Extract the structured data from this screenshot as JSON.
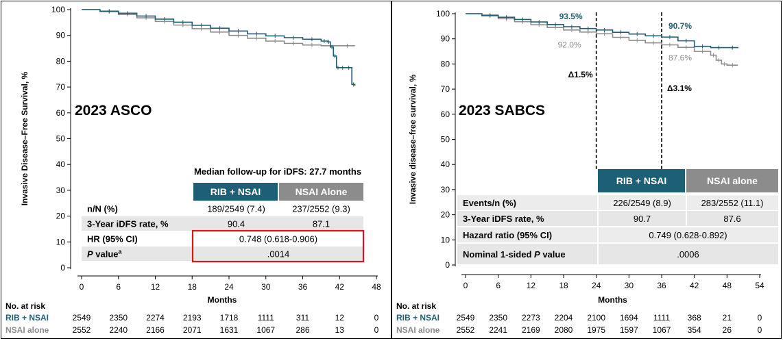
{
  "colors": {
    "teal": "#1d5f74",
    "gray": "#8c8c8c",
    "table_shade": "#e6e6e6",
    "highlight": "#d9141c"
  },
  "charts": [
    {
      "panel_label": "2023 ASCO",
      "ylabel": "Invasive Disease–Free Survival, %",
      "xlabel": "Months",
      "follow_up_note": "Median follow-up for iDFS: 27.7 months",
      "table": {
        "headers": [
          "RIB + NSAI",
          "NSAI Alone"
        ],
        "rows": [
          {
            "label": "n/N (%)",
            "label_italic": "",
            "label_sup": "",
            "values": [
              "189/2549 (7.4)",
              "237/2552 (9.3)"
            ]
          },
          {
            "label": "3-Year iDFS rate, %",
            "label_italic": "",
            "label_sup": "",
            "values": [
              "90.4",
              "87.1"
            ]
          },
          {
            "label": "HR (95% CI)",
            "label_italic": "",
            "label_sup": "",
            "values": [
              "0.748 (0.618-0.906)"
            ]
          },
          {
            "label": "",
            "label_italic": "P",
            "label_sup": "a",
            "label_tail": " value",
            "values": [
              ".0014"
            ]
          }
        ]
      },
      "risk_table": {
        "heading": "No. at risk",
        "rows": [
          {
            "label": "RIB + NSAI",
            "values": [
              "2549",
              "2350",
              "2274",
              "2193",
              "1718",
              "1111",
              "311",
              "12",
              "0"
            ]
          },
          {
            "label": "NSAI alone",
            "values": [
              "2552",
              "2240",
              "2166",
              "2071",
              "1631",
              "1067",
              "286",
              "13",
              "0"
            ]
          }
        ]
      },
      "annotations": [],
      "chart_data": {
        "type": "line",
        "title": "2023 ASCO",
        "xlabel": "Months",
        "ylabel": "Invasive Disease–Free Survival, %",
        "xlim": [
          0,
          48
        ],
        "ylim": [
          0,
          100
        ],
        "xticks": [
          0,
          6,
          12,
          18,
          24,
          30,
          36,
          42,
          48
        ],
        "yticks": [
          0,
          10,
          20,
          30,
          40,
          50,
          60,
          70,
          80,
          90,
          100
        ],
        "series": [
          {
            "name": "RIB + NSAI",
            "x": [
              0,
              3,
              6,
              9,
              12,
              15,
              18,
              21,
              24,
              27,
              30,
              33,
              36,
              39,
              40,
              40.5,
              41,
              41.5,
              42,
              43,
              44,
              44.5
            ],
            "y": [
              100,
              99.4,
              98.6,
              97.5,
              96.3,
              95.1,
              93.9,
              92.8,
              91.7,
              90.6,
              89.8,
              89.1,
              88.5,
              87.8,
              87.5,
              85.5,
              82.0,
              77.5,
              77.5,
              77.5,
              71.0,
              70.5
            ]
          },
          {
            "name": "NSAI alone",
            "x": [
              0,
              3,
              6,
              9,
              12,
              15,
              18,
              21,
              24,
              27,
              30,
              33,
              36,
              39,
              42,
              44.5
            ],
            "y": [
              100,
              99.2,
              98.1,
              96.8,
              95.4,
              94.0,
              92.6,
              91.3,
              90.0,
              88.9,
              87.8,
              86.9,
              86.3,
              86.0,
              86.0,
              86.0
            ]
          }
        ]
      }
    },
    {
      "panel_label": "2023 SABCS",
      "ylabel": "Invasive disease–free survival, %",
      "xlabel": "Months",
      "follow_up_note": "",
      "table": {
        "headers": [
          "RIB + NSAI",
          "NSAI alone"
        ],
        "rows": [
          {
            "label": "Events/n (%)",
            "label_italic": "",
            "label_sup": "",
            "values": [
              "226/2549 (8.9)",
              "283/2552 (11.1)"
            ]
          },
          {
            "label": "3-Year iDFS rate, %",
            "label_italic": "",
            "label_sup": "",
            "values": [
              "90.7",
              "87.6"
            ]
          },
          {
            "label": "Hazard ratio (95% CI)",
            "label_italic": "",
            "label_sup": "",
            "values": [
              "0.749 (0.628-0.892)"
            ]
          },
          {
            "label": "Nominal 1-sided ",
            "label_italic": "P",
            "label_sup": "",
            "label_tail": " value",
            "values": [
              ".0006"
            ]
          }
        ]
      },
      "risk_table": {
        "heading": "No. at risk",
        "rows": [
          {
            "label": "RIB + NSAI",
            "values": [
              "2549",
              "2350",
              "2273",
              "2204",
              "2100",
              "1694",
              "1111",
              "368",
              "21",
              "0"
            ]
          },
          {
            "label": "NSAI alone",
            "values": [
              "2552",
              "2241",
              "2169",
              "2080",
              "1975",
              "1597",
              "1067",
              "354",
              "26",
              "0"
            ]
          }
        ]
      },
      "annotations": [
        {
          "text": "93.5%",
          "series": 0,
          "x": 24,
          "y": 93.5
        },
        {
          "text": "92.0%",
          "series": 1,
          "x": 24,
          "y": 92.0
        },
        {
          "text": "90.7%",
          "series": 0,
          "x": 36,
          "y": 90.7
        },
        {
          "text": "87.6%",
          "series": 1,
          "x": 36,
          "y": 87.6
        },
        {
          "text": "Δ1.5%",
          "series": -1,
          "x": 24,
          "y": 80
        },
        {
          "text": "Δ3.1%",
          "series": -1,
          "x": 36,
          "y": 73
        }
      ],
      "chart_data": {
        "type": "line",
        "title": "2023 SABCS",
        "xlabel": "Months",
        "ylabel": "Invasive disease–free survival, %",
        "xlim": [
          0,
          54
        ],
        "ylim": [
          0,
          100
        ],
        "xticks": [
          0,
          6,
          12,
          18,
          24,
          30,
          36,
          42,
          48,
          54
        ],
        "yticks": [
          0,
          10,
          20,
          30,
          40,
          50,
          60,
          70,
          80,
          90,
          100
        ],
        "reference_lines_x": [
          24,
          36
        ],
        "series": [
          {
            "name": "RIB + NSAI",
            "x": [
              0,
              3,
              6,
              9,
              12,
              15,
              18,
              21,
              24,
              27,
              30,
              33,
              36,
              39,
              42,
              45,
              48,
              50
            ],
            "y": [
              100,
              99.4,
              98.6,
              97.7,
              96.7,
              95.7,
              94.8,
              94.1,
              93.5,
              92.6,
              91.9,
              91.2,
              90.7,
              89.2,
              87.0,
              86.5,
              86.5,
              86.3
            ]
          },
          {
            "name": "NSAI alone",
            "x": [
              0,
              3,
              6,
              9,
              12,
              15,
              18,
              21,
              24,
              27,
              30,
              33,
              36,
              39,
              42,
              45,
              46,
              47,
              48,
              50
            ],
            "y": [
              100,
              99.1,
              98.0,
              96.8,
              95.6,
              94.5,
              93.5,
              92.7,
              92.0,
              90.6,
              89.4,
              88.4,
              87.6,
              86.6,
              85.0,
              83.5,
              81.5,
              80.0,
              79.5,
              79.5
            ]
          }
        ]
      }
    }
  ]
}
